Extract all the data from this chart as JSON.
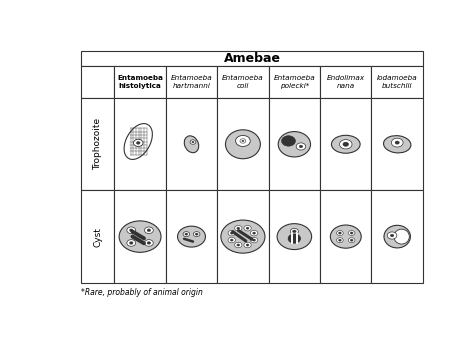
{
  "title": "Amebae",
  "col_headers": [
    "Entamoeba\nhistolytica",
    "Entamoeba\nhartmanni",
    "Entamoeba\ncoli",
    "Entamoeba\npolecki*",
    "Endolimax\nnana",
    "Iodamoeba\nbutschlii"
  ],
  "row_headers": [
    "Trophozoite",
    "Cyst"
  ],
  "footnote": "*Rare, probably of animal origin",
  "bg_color": "#ffffff",
  "gray_fill": "#c8c8c8",
  "dark_gray": "#888888",
  "outline_color": "#333333"
}
